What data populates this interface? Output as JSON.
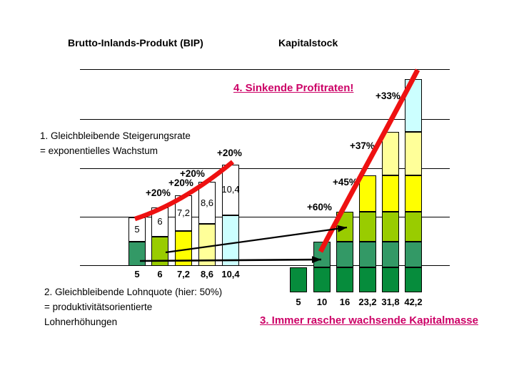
{
  "headers": {
    "bip": "Brutto-Inlands-Produkt (BIP)",
    "kapitalstock": "Kapitalstock"
  },
  "notes": {
    "steigerungsrate": {
      "lines": [
        "1. Gleichbleibende Steigerungsrate",
        "= exponentielles Wachstum"
      ]
    },
    "lohnquote": {
      "lines": [
        "2. Gleichbleibende Lohnquote (hier: 50%)",
        "= produktivitätsorientierte",
        "Lohnerhöhungen"
      ]
    }
  },
  "callouts": {
    "profitraten": "4. Sinkende Profitraten!",
    "kapitalmasse": "3. Immer rascher wachsende Kapitalmasse"
  },
  "colors": {
    "callout_magenta": "#CC0066",
    "curve_red": "#EE1111",
    "arrow_black": "#000000",
    "grid_line": "#000000",
    "white_segment": "#FFFFFF",
    "segment_palette": [
      "#068C3C",
      "#339966",
      "#99CC00",
      "#FFFF00",
      "#FFFF99",
      "#CCFFFF"
    ]
  },
  "chart_data": [
    {
      "id": "bip",
      "type": "bar",
      "title": "Brutto-Inlands-Produkt (BIP)",
      "categories": [
        "5",
        "6",
        "7,2",
        "8,6",
        "10,4"
      ],
      "values": [
        5,
        6,
        7.2,
        8.6,
        10.4
      ],
      "bar_value_labels": [
        "5",
        "6",
        "7,2",
        "8,6",
        "10,4"
      ],
      "growth_labels": [
        "+20%",
        "+20%",
        "+20%",
        "+20%"
      ],
      "wage_share": 0.5,
      "wage_segment_colors": [
        "#339966",
        "#99CC00",
        "#FFFF00",
        "#FFFF99",
        "#CCFFFF"
      ],
      "grid": true,
      "ylim": [
        0,
        20
      ],
      "legend": false
    },
    {
      "id": "kapitalstock",
      "type": "bar",
      "title": "Kapitalstock",
      "categories": [
        "5",
        "10",
        "16",
        "23,2",
        "31,8",
        "42,2"
      ],
      "values": [
        5,
        10,
        16,
        23.2,
        31.8,
        42.2
      ],
      "increments": [
        5,
        5,
        6,
        7.2,
        8.6,
        10.4
      ],
      "segment_colors": [
        "#068C3C",
        "#339966",
        "#99CC00",
        "#FFFF00",
        "#FFFF99",
        "#CCFFFF"
      ],
      "growth_labels": [
        "+60%",
        "+45%",
        "+37%",
        "+33%"
      ],
      "grid": true,
      "legend": false
    }
  ]
}
